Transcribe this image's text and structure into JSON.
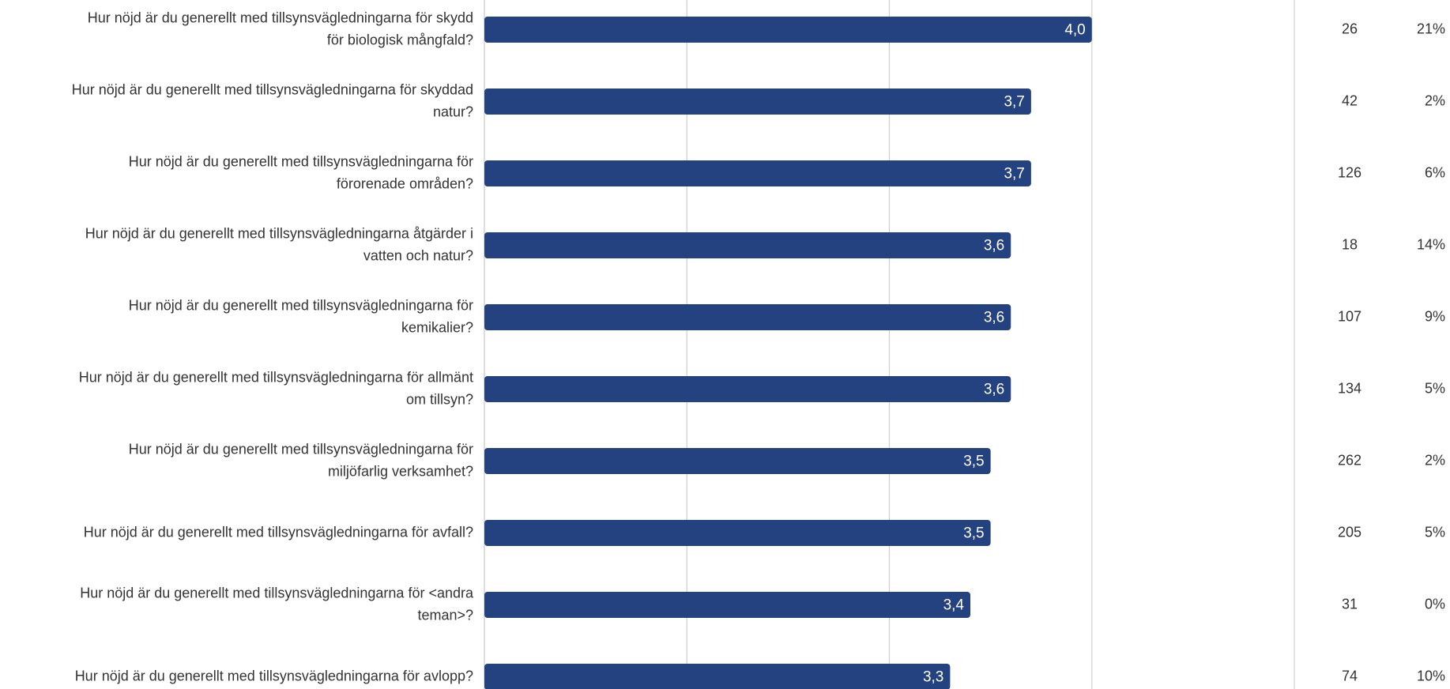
{
  "chart_data": {
    "type": "bar",
    "orientation": "horizontal",
    "categories": [
      [
        "Hur nöjd är du generellt med tillsynsvägledningarna för skydd",
        "för biologisk mångfald?"
      ],
      [
        "Hur nöjd är du generellt med tillsynsvägledningarna för skyddad",
        "natur?"
      ],
      [
        "Hur nöjd är du generellt med tillsynsvägledningarna för",
        "förorenade områden?"
      ],
      [
        "Hur nöjd är du generellt med tillsynsvägledningarna åtgärder i",
        "vatten och natur?"
      ],
      [
        "Hur nöjd är du generellt med tillsynsvägledningarna för",
        "kemikalier?"
      ],
      [
        "Hur nöjd är du generellt med tillsynsvägledningarna för allmänt",
        "om tillsyn?"
      ],
      [
        "Hur nöjd är du generellt med tillsynsvägledningarna för",
        "miljöfarlig verksamhet?"
      ],
      [
        "Hur nöjd är du generellt med tillsynsvägledningarna för avfall?"
      ],
      [
        "Hur nöjd är du generellt med tillsynsvägledningarna för <andra",
        "teman>?"
      ],
      [
        "Hur nöjd är du generellt med tillsynsvägledningarna för avlopp?"
      ]
    ],
    "values": [
      4.0,
      3.7,
      3.7,
      3.6,
      3.6,
      3.6,
      3.5,
      3.5,
      3.4,
      3.3
    ],
    "value_labels": [
      "4,0",
      "3,7",
      "3,7",
      "3,6",
      "3,6",
      "3,6",
      "3,5",
      "3,5",
      "3,4",
      "3,3"
    ],
    "counts": [
      26,
      42,
      126,
      18,
      107,
      134,
      262,
      205,
      31,
      74
    ],
    "share_labels": [
      "21%",
      "2%",
      "6%",
      "14%",
      "9%",
      "5%",
      "2%",
      "5%",
      "0%",
      "10%"
    ],
    "color": "#24427f",
    "xlim": [
      1,
      5
    ],
    "xticks": [
      2,
      3,
      4,
      5
    ],
    "grid": true
  }
}
